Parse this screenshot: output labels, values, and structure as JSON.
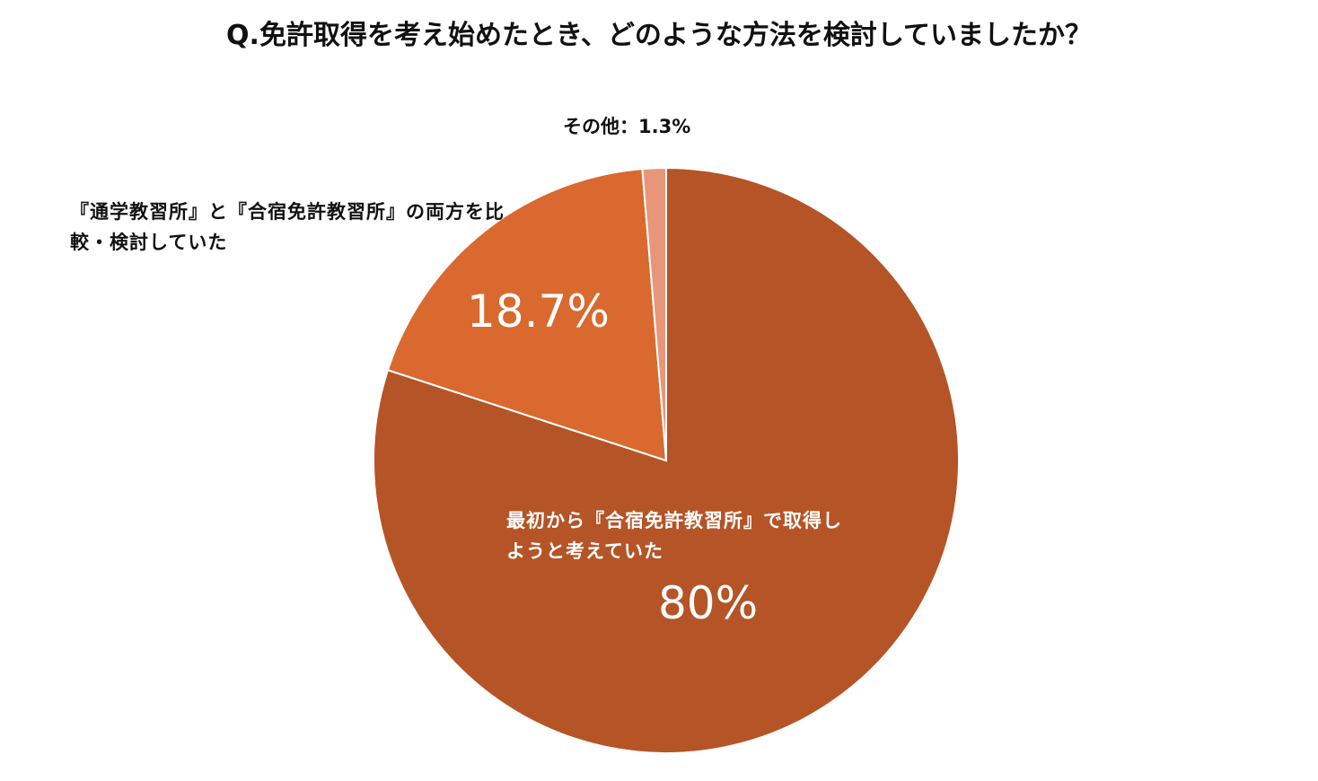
{
  "chart_data": {
    "type": "pie",
    "title": "Q.免許取得を考え始めたとき、どのような方法を検討していましたか？",
    "categories": [
      "最初から『合宿免許教習所』で取得しようと考えていた",
      "『通学教習所』と『合宿免許教習所』の両方を比較・検討していた",
      "その他"
    ],
    "values": [
      80,
      18.7,
      1.3
    ],
    "value_labels": [
      "80%",
      "18.7%",
      "1.3%"
    ],
    "label_separator": "：",
    "colors": [
      "#b55426",
      "#d9692e",
      "#e8967a"
    ]
  }
}
